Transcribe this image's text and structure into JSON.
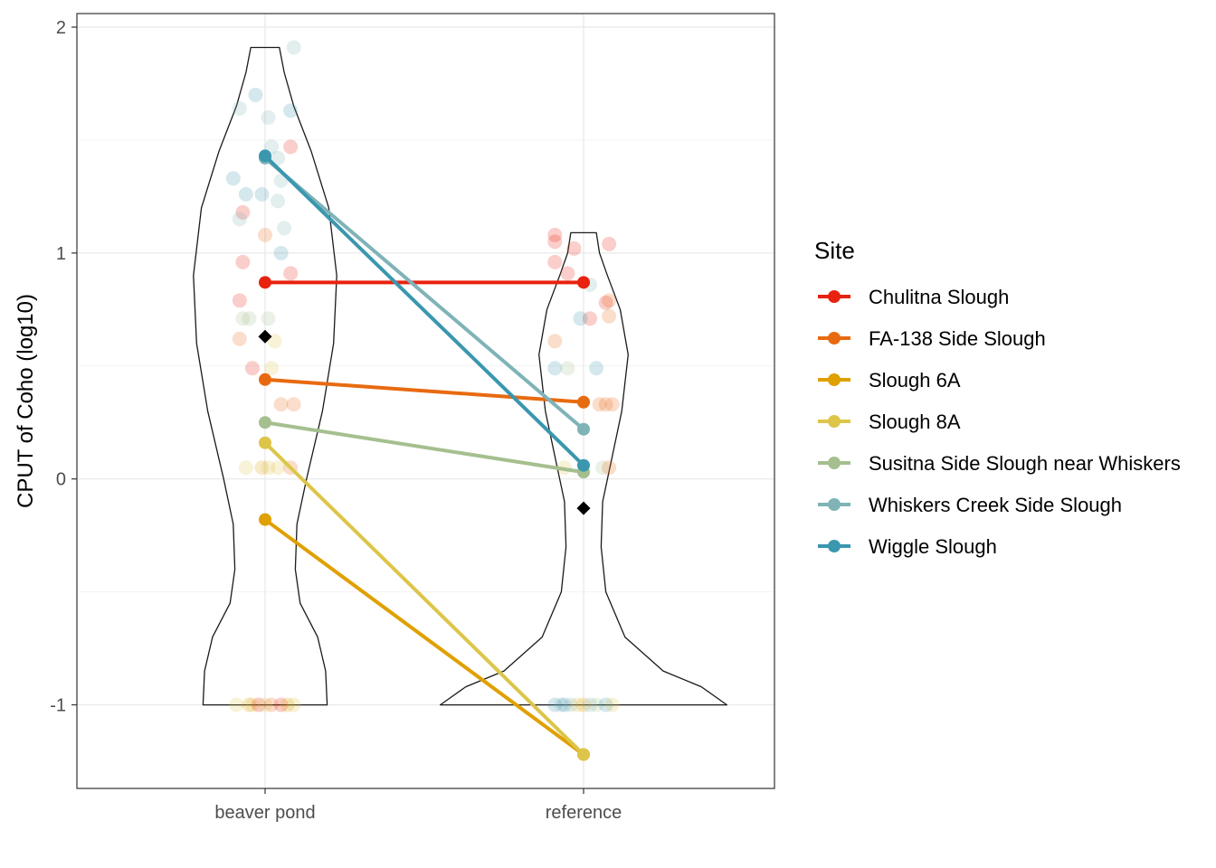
{
  "chart_data": {
    "type": "line",
    "title": "",
    "xlabel": "",
    "ylabel": "CPUT of Coho (log10)",
    "categories": [
      "beaver pond",
      "reference"
    ],
    "ylim": [
      -1.37,
      2.06
    ],
    "yticks": [
      -1,
      0,
      1,
      2
    ],
    "grid": true,
    "legend": {
      "title": "Site",
      "position": "right"
    },
    "series": [
      {
        "name": "Chulitna Slough",
        "color": "#E8220E",
        "values": [
          0.87,
          0.87
        ]
      },
      {
        "name": "FA-138 Side Slough",
        "color": "#E86A10",
        "values": [
          0.44,
          0.34
        ]
      },
      {
        "name": "Slough 6A",
        "color": "#E0A000",
        "values": [
          -0.18,
          -1.22
        ]
      },
      {
        "name": "Slough 8A",
        "color": "#DDC54A",
        "values": [
          0.16,
          -1.22
        ]
      },
      {
        "name": "Susitna Side Slough near Whiskers",
        "color": "#A5BF8E",
        "values": [
          0.25,
          0.03
        ]
      },
      {
        "name": "Whiskers Creek Side Slough",
        "color": "#7FB3B8",
        "values": [
          1.42,
          0.22
        ]
      },
      {
        "name": "Wiggle Slough",
        "color": "#3A97AE",
        "values": [
          1.43,
          0.06
        ]
      }
    ],
    "means": [
      {
        "category": "beaver pond",
        "value": 0.63
      },
      {
        "category": "reference",
        "value": -0.13
      }
    ],
    "violins": [
      {
        "category": "beaver pond",
        "ymin": -1.0,
        "ymax": 1.91,
        "profile": [
          [
            -1.0,
            0.195
          ],
          [
            -0.85,
            0.19
          ],
          [
            -0.7,
            0.165
          ],
          [
            -0.55,
            0.11
          ],
          [
            -0.4,
            0.095
          ],
          [
            -0.2,
            0.1
          ],
          [
            0.0,
            0.13
          ],
          [
            0.3,
            0.18
          ],
          [
            0.6,
            0.215
          ],
          [
            0.9,
            0.225
          ],
          [
            1.2,
            0.2
          ],
          [
            1.45,
            0.145
          ],
          [
            1.65,
            0.09
          ],
          [
            1.8,
            0.06
          ],
          [
            1.91,
            0.045
          ]
        ]
      },
      {
        "category": "reference",
        "ymin": -1.0,
        "ymax": 1.09,
        "profile": [
          [
            -1.0,
            0.45
          ],
          [
            -0.92,
            0.37
          ],
          [
            -0.85,
            0.25
          ],
          [
            -0.7,
            0.13
          ],
          [
            -0.5,
            0.07
          ],
          [
            -0.3,
            0.055
          ],
          [
            -0.1,
            0.06
          ],
          [
            0.1,
            0.09
          ],
          [
            0.3,
            0.12
          ],
          [
            0.55,
            0.14
          ],
          [
            0.75,
            0.115
          ],
          [
            0.9,
            0.075
          ],
          [
            1.0,
            0.05
          ],
          [
            1.09,
            0.04
          ]
        ]
      }
    ],
    "observations": [
      {
        "category": "beaver pond",
        "site": "Whiskers Creek Side Slough",
        "y": 1.91,
        "dx": 0.09
      },
      {
        "category": "beaver pond",
        "site": "Wiggle Slough",
        "y": 1.7,
        "dx": -0.03
      },
      {
        "category": "beaver pond",
        "site": "Whiskers Creek Side Slough",
        "y": 1.64,
        "dx": -0.08
      },
      {
        "category": "beaver pond",
        "site": "Wiggle Slough",
        "y": 1.63,
        "dx": 0.08
      },
      {
        "category": "beaver pond",
        "site": "Whiskers Creek Side Slough",
        "y": 1.6,
        "dx": 0.01
      },
      {
        "category": "beaver pond",
        "site": "Chulitna Slough",
        "y": 1.47,
        "dx": 0.08
      },
      {
        "category": "beaver pond",
        "site": "Whiskers Creek Side Slough",
        "y": 1.47,
        "dx": 0.02
      },
      {
        "category": "beaver pond",
        "site": "Whiskers Creek Side Slough",
        "y": 1.42,
        "dx": 0.04
      },
      {
        "category": "beaver pond",
        "site": "Wiggle Slough",
        "y": 1.33,
        "dx": -0.1
      },
      {
        "category": "beaver pond",
        "site": "Whiskers Creek Side Slough",
        "y": 1.32,
        "dx": 0.05
      },
      {
        "category": "beaver pond",
        "site": "Wiggle Slough",
        "y": 1.26,
        "dx": -0.06
      },
      {
        "category": "beaver pond",
        "site": "Wiggle Slough",
        "y": 1.26,
        "dx": -0.01
      },
      {
        "category": "beaver pond",
        "site": "Whiskers Creek Side Slough",
        "y": 1.23,
        "dx": 0.04
      },
      {
        "category": "beaver pond",
        "site": "Chulitna Slough",
        "y": 1.18,
        "dx": -0.07
      },
      {
        "category": "beaver pond",
        "site": "Whiskers Creek Side Slough",
        "y": 1.15,
        "dx": -0.08
      },
      {
        "category": "beaver pond",
        "site": "Whiskers Creek Side Slough",
        "y": 1.11,
        "dx": 0.06
      },
      {
        "category": "beaver pond",
        "site": "FA-138 Side Slough",
        "y": 1.08,
        "dx": 0.0
      },
      {
        "category": "beaver pond",
        "site": "Wiggle Slough",
        "y": 1.0,
        "dx": 0.05
      },
      {
        "category": "beaver pond",
        "site": "Chulitna Slough",
        "y": 0.96,
        "dx": -0.07
      },
      {
        "category": "beaver pond",
        "site": "Chulitna Slough",
        "y": 0.91,
        "dx": 0.08
      },
      {
        "category": "beaver pond",
        "site": "Chulitna Slough",
        "y": 0.79,
        "dx": -0.08
      },
      {
        "category": "beaver pond",
        "site": "Susitna Side Slough near Whiskers",
        "y": 0.71,
        "dx": -0.07
      },
      {
        "category": "beaver pond",
        "site": "Susitna Side Slough near Whiskers",
        "y": 0.71,
        "dx": -0.05
      },
      {
        "category": "beaver pond",
        "site": "Susitna Side Slough near Whiskers",
        "y": 0.71,
        "dx": 0.01
      },
      {
        "category": "beaver pond",
        "site": "FA-138 Side Slough",
        "y": 0.62,
        "dx": -0.08
      },
      {
        "category": "beaver pond",
        "site": "Slough 8A",
        "y": 0.61,
        "dx": 0.03
      },
      {
        "category": "beaver pond",
        "site": "Chulitna Slough",
        "y": 0.49,
        "dx": -0.04
      },
      {
        "category": "beaver pond",
        "site": "Slough 8A",
        "y": 0.49,
        "dx": 0.02
      },
      {
        "category": "beaver pond",
        "site": "FA-138 Side Slough",
        "y": 0.33,
        "dx": 0.05
      },
      {
        "category": "beaver pond",
        "site": "FA-138 Side Slough",
        "y": 0.33,
        "dx": 0.09
      },
      {
        "category": "beaver pond",
        "site": "Slough 8A",
        "y": 0.05,
        "dx": -0.06
      },
      {
        "category": "beaver pond",
        "site": "Slough 6A",
        "y": 0.05,
        "dx": -0.01
      },
      {
        "category": "beaver pond",
        "site": "Slough 8A",
        "y": 0.05,
        "dx": 0.01
      },
      {
        "category": "beaver pond",
        "site": "Slough 8A",
        "y": 0.05,
        "dx": 0.04
      },
      {
        "category": "beaver pond",
        "site": "FA-138 Side Slough",
        "y": 0.05,
        "dx": 0.08
      },
      {
        "category": "beaver pond",
        "site": "Slough 8A",
        "y": -1.0,
        "dx": -0.09
      },
      {
        "category": "beaver pond",
        "site": "Slough 6A",
        "y": -1.0,
        "dx": -0.05
      },
      {
        "category": "beaver pond",
        "site": "Slough 8A",
        "y": -1.0,
        "dx": -0.04
      },
      {
        "category": "beaver pond",
        "site": "Chulitna Slough",
        "y": -1.0,
        "dx": -0.02
      },
      {
        "category": "beaver pond",
        "site": "Slough 8A",
        "y": -1.0,
        "dx": 0.0
      },
      {
        "category": "beaver pond",
        "site": "FA-138 Side Slough",
        "y": -1.0,
        "dx": 0.02
      },
      {
        "category": "beaver pond",
        "site": "Chulitna Slough",
        "y": -1.0,
        "dx": 0.05
      },
      {
        "category": "beaver pond",
        "site": "Slough 6A",
        "y": -1.0,
        "dx": 0.07
      },
      {
        "category": "beaver pond",
        "site": "Slough 8A",
        "y": -1.0,
        "dx": 0.09
      },
      {
        "category": "reference",
        "site": "Chulitna Slough",
        "y": 1.08,
        "dx": -0.09
      },
      {
        "category": "reference",
        "site": "Chulitna Slough",
        "y": 1.05,
        "dx": -0.09
      },
      {
        "category": "reference",
        "site": "Chulitna Slough",
        "y": 1.04,
        "dx": 0.08
      },
      {
        "category": "reference",
        "site": "Chulitna Slough",
        "y": 1.02,
        "dx": -0.03
      },
      {
        "category": "reference",
        "site": "Chulitna Slough",
        "y": 0.96,
        "dx": -0.09
      },
      {
        "category": "reference",
        "site": "Chulitna Slough",
        "y": 0.91,
        "dx": -0.05
      },
      {
        "category": "reference",
        "site": "Whiskers Creek Side Slough",
        "y": 0.86,
        "dx": 0.02
      },
      {
        "category": "reference",
        "site": "FA-138 Side Slough",
        "y": 0.79,
        "dx": 0.08
      },
      {
        "category": "reference",
        "site": "Chulitna Slough",
        "y": 0.78,
        "dx": 0.07
      },
      {
        "category": "reference",
        "site": "FA-138 Side Slough",
        "y": 0.72,
        "dx": 0.08
      },
      {
        "category": "reference",
        "site": "Chulitna Slough",
        "y": 0.71,
        "dx": 0.02
      },
      {
        "category": "reference",
        "site": "Wiggle Slough",
        "y": 0.71,
        "dx": -0.01
      },
      {
        "category": "reference",
        "site": "FA-138 Side Slough",
        "y": 0.61,
        "dx": -0.09
      },
      {
        "category": "reference",
        "site": "Wiggle Slough",
        "y": 0.49,
        "dx": -0.09
      },
      {
        "category": "reference",
        "site": "Susitna Side Slough near Whiskers",
        "y": 0.49,
        "dx": -0.05
      },
      {
        "category": "reference",
        "site": "Wiggle Slough",
        "y": 0.49,
        "dx": 0.04
      },
      {
        "category": "reference",
        "site": "FA-138 Side Slough",
        "y": 0.33,
        "dx": 0.05
      },
      {
        "category": "reference",
        "site": "FA-138 Side Slough",
        "y": 0.33,
        "dx": 0.07
      },
      {
        "category": "reference",
        "site": "FA-138 Side Slough",
        "y": 0.33,
        "dx": 0.09
      },
      {
        "category": "reference",
        "site": "Slough 8A",
        "y": 0.05,
        "dx": -0.06
      },
      {
        "category": "reference",
        "site": "Susitna Side Slough near Whiskers",
        "y": 0.05,
        "dx": 0.06
      },
      {
        "category": "reference",
        "site": "FA-138 Side Slough",
        "y": 0.05,
        "dx": 0.08
      },
      {
        "category": "reference",
        "site": "Wiggle Slough",
        "y": -1.0,
        "dx": -0.09
      },
      {
        "category": "reference",
        "site": "Whiskers Creek Side Slough",
        "y": -1.0,
        "dx": -0.07
      },
      {
        "category": "reference",
        "site": "Wiggle Slough",
        "y": -1.0,
        "dx": -0.06
      },
      {
        "category": "reference",
        "site": "Whiskers Creek Side Slough",
        "y": -1.0,
        "dx": -0.04
      },
      {
        "category": "reference",
        "site": "Slough 8A",
        "y": -1.0,
        "dx": -0.02
      },
      {
        "category": "reference",
        "site": "Slough 6A",
        "y": -1.0,
        "dx": 0.0
      },
      {
        "category": "reference",
        "site": "Whiskers Creek Side Slough",
        "y": -1.0,
        "dx": 0.02
      },
      {
        "category": "reference",
        "site": "Susitna Side Slough near Whiskers",
        "y": -1.0,
        "dx": 0.04
      },
      {
        "category": "reference",
        "site": "Wiggle Slough",
        "y": -1.0,
        "dx": 0.07
      },
      {
        "category": "reference",
        "site": "Slough 8A",
        "y": -1.0,
        "dx": 0.09
      }
    ]
  }
}
